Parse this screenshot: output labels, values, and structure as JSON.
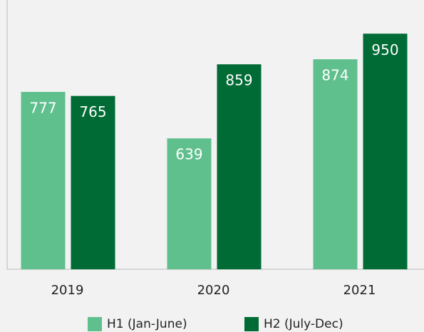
{
  "chart_data": {
    "type": "bar",
    "categories": [
      "2019",
      "2020",
      "2021"
    ],
    "series": [
      {
        "name": "H1 (Jan-June)",
        "color": "#5fc08e",
        "values": [
          777,
          639,
          874
        ]
      },
      {
        "name": "H2 (July-Dec)",
        "color": "#006b35",
        "values": [
          765,
          859,
          950
        ]
      }
    ],
    "ylim": [
      250,
      1050
    ]
  }
}
